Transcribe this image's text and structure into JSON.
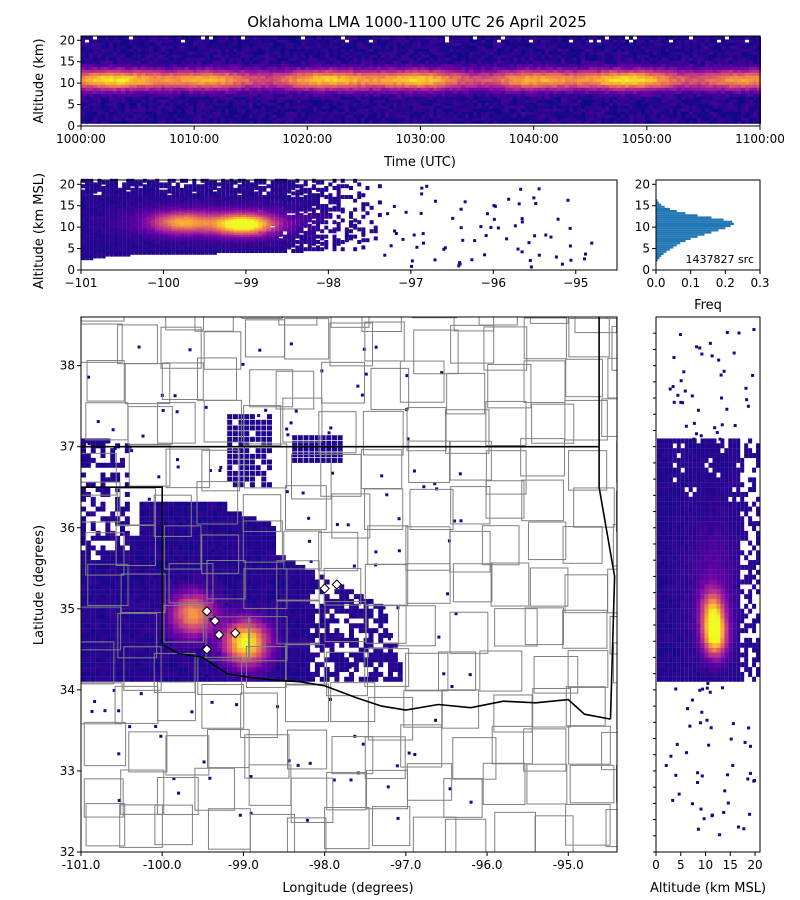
{
  "title": "Oklahoma LMA 1000-1100 UTC 26 April 2025",
  "colors": {
    "cmap": [
      "#0d0887",
      "#6a00a8",
      "#b12a90",
      "#e16462",
      "#fca636",
      "#f0f921"
    ],
    "hist_bar": "#1f77b4",
    "state_border": "#000000",
    "county_border": "#808080",
    "station_marker": "#ffffff"
  },
  "chart_data": [
    {
      "id": "time_height",
      "type": "heatmap",
      "xlabel": "Time (UTC)",
      "ylabel": "Altitude (km)",
      "xlim": [
        "1000:00",
        "1100:00"
      ],
      "xticks": [
        "1000:00",
        "1010:00",
        "1020:00",
        "1030:00",
        "1040:00",
        "1050:00",
        "1100:00"
      ],
      "ylim": [
        0,
        21
      ],
      "yticks": [
        0,
        5,
        10,
        15,
        20
      ],
      "density_peak_altitude_km": 10.5,
      "core_band_km": [
        7,
        14
      ]
    },
    {
      "id": "lon_height",
      "type": "heatmap",
      "xlabel": "",
      "ylabel": "Altitude (km MSL)",
      "xlim": [
        -101,
        -94.5
      ],
      "xticks": [
        -101,
        -100,
        -99,
        -98,
        -97,
        -96,
        -95
      ],
      "xtick_labels": [
        "−101",
        "−100",
        "−99",
        "−98",
        "−97",
        "−96",
        "−95"
      ],
      "ylim": [
        0,
        21
      ],
      "yticks": [
        0,
        5,
        10,
        15,
        20
      ],
      "hotspots": [
        {
          "lon": -99.8,
          "alt": 11.0,
          "intensity": 0.6
        },
        {
          "lon": -99.05,
          "alt": 10.5,
          "intensity": 1.0
        }
      ]
    },
    {
      "id": "altitude_histogram",
      "type": "bar",
      "orientation": "horizontal",
      "xlabel": "Freq",
      "xlim": [
        0,
        0.3
      ],
      "xticks": [
        0.0,
        0.1,
        0.2,
        0.3
      ],
      "xtick_labels": [
        "0.0",
        "0.1",
        "0.2",
        "0.3"
      ],
      "ylim": [
        0,
        21
      ],
      "yticks": [
        0,
        5,
        10,
        15,
        20
      ],
      "annotation": "1437827 src",
      "bins_km": [
        2,
        2.5,
        3,
        3.5,
        4,
        4.5,
        5,
        5.5,
        6,
        6.5,
        7,
        7.5,
        8,
        8.5,
        9,
        9.5,
        10,
        10.5,
        11,
        11.5,
        12,
        12.5,
        13,
        13.5,
        14,
        14.5,
        15,
        15.5,
        16
      ],
      "values": [
        0.005,
        0.01,
        0.015,
        0.022,
        0.03,
        0.04,
        0.05,
        0.06,
        0.07,
        0.085,
        0.1,
        0.12,
        0.14,
        0.16,
        0.18,
        0.2,
        0.215,
        0.225,
        0.22,
        0.195,
        0.16,
        0.12,
        0.085,
        0.06,
        0.04,
        0.025,
        0.015,
        0.008,
        0.004
      ]
    },
    {
      "id": "plan_view",
      "type": "heatmap",
      "xlabel": "Longitude (degrees)",
      "ylabel": "Latitude (degrees)",
      "xlim": [
        -101,
        -94.4
      ],
      "xticks": [
        -101,
        -100,
        -99,
        -98,
        -97,
        -96,
        -95
      ],
      "xtick_labels": [
        "-101.0",
        "-100.0",
        "-99.0",
        "-98.0",
        "-97.0",
        "-96.0",
        "-95.0"
      ],
      "ylim": [
        32,
        38.6
      ],
      "yticks": [
        32,
        33,
        34,
        35,
        36,
        37,
        38
      ],
      "hotspots": [
        {
          "lon": -99.65,
          "lat": 34.9,
          "intensity": 0.7
        },
        {
          "lon": -99.0,
          "lat": 34.55,
          "intensity": 1.0
        }
      ],
      "stations": [
        {
          "lon": -99.45,
          "lat": 34.97
        },
        {
          "lon": -99.35,
          "lat": 34.85
        },
        {
          "lon": -99.3,
          "lat": 34.68
        },
        {
          "lon": -99.1,
          "lat": 34.7
        },
        {
          "lon": -99.45,
          "lat": 34.5
        },
        {
          "lon": -98.0,
          "lat": 35.25
        },
        {
          "lon": -97.85,
          "lat": 35.3
        }
      ]
    },
    {
      "id": "height_lat",
      "type": "heatmap",
      "xlabel": "Altitude (km MSL)",
      "ylabel": "",
      "xlim": [
        0,
        21
      ],
      "xticks": [
        0,
        5,
        10,
        15,
        20
      ],
      "ylim": [
        32,
        38.6
      ],
      "hotspots": [
        {
          "alt": 11.5,
          "lat": 34.65,
          "intensity": 1.0
        },
        {
          "alt": 11.0,
          "lat": 34.95,
          "intensity": 0.6
        }
      ]
    }
  ]
}
